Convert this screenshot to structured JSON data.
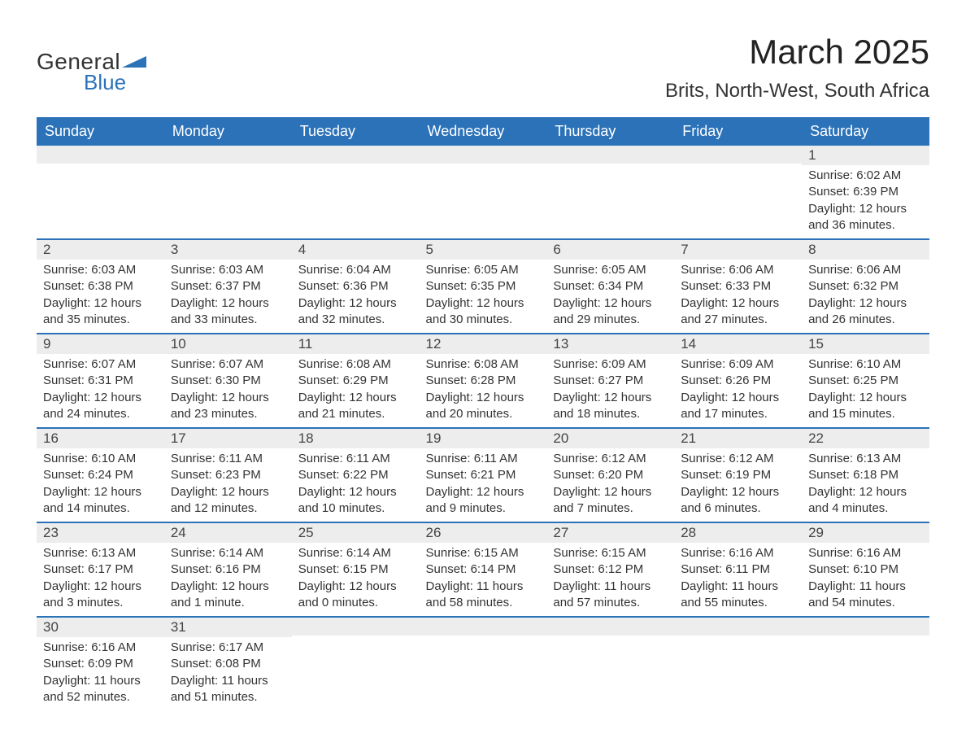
{
  "logo": {
    "general": "General",
    "blue": "Blue",
    "accent_color": "#2b72b9"
  },
  "title": "March 2025",
  "location": "Brits, North-West, South Africa",
  "colors": {
    "header_bg": "#2b72b9",
    "header_text": "#ffffff",
    "daynum_bg": "#ededed",
    "row_divider": "#2b72b9",
    "body_bg": "#ffffff",
    "text": "#333333"
  },
  "typography": {
    "title_fontsize": 42,
    "location_fontsize": 24,
    "header_fontsize": 18,
    "daynum_fontsize": 17,
    "body_fontsize": 15
  },
  "weekdays": [
    "Sunday",
    "Monday",
    "Tuesday",
    "Wednesday",
    "Thursday",
    "Friday",
    "Saturday"
  ],
  "weeks": [
    [
      {
        "blank": true
      },
      {
        "blank": true
      },
      {
        "blank": true
      },
      {
        "blank": true
      },
      {
        "blank": true
      },
      {
        "blank": true
      },
      {
        "day": "1",
        "sunrise": "Sunrise: 6:02 AM",
        "sunset": "Sunset: 6:39 PM",
        "daylight1": "Daylight: 12 hours",
        "daylight2": "and 36 minutes."
      }
    ],
    [
      {
        "day": "2",
        "sunrise": "Sunrise: 6:03 AM",
        "sunset": "Sunset: 6:38 PM",
        "daylight1": "Daylight: 12 hours",
        "daylight2": "and 35 minutes."
      },
      {
        "day": "3",
        "sunrise": "Sunrise: 6:03 AM",
        "sunset": "Sunset: 6:37 PM",
        "daylight1": "Daylight: 12 hours",
        "daylight2": "and 33 minutes."
      },
      {
        "day": "4",
        "sunrise": "Sunrise: 6:04 AM",
        "sunset": "Sunset: 6:36 PM",
        "daylight1": "Daylight: 12 hours",
        "daylight2": "and 32 minutes."
      },
      {
        "day": "5",
        "sunrise": "Sunrise: 6:05 AM",
        "sunset": "Sunset: 6:35 PM",
        "daylight1": "Daylight: 12 hours",
        "daylight2": "and 30 minutes."
      },
      {
        "day": "6",
        "sunrise": "Sunrise: 6:05 AM",
        "sunset": "Sunset: 6:34 PM",
        "daylight1": "Daylight: 12 hours",
        "daylight2": "and 29 minutes."
      },
      {
        "day": "7",
        "sunrise": "Sunrise: 6:06 AM",
        "sunset": "Sunset: 6:33 PM",
        "daylight1": "Daylight: 12 hours",
        "daylight2": "and 27 minutes."
      },
      {
        "day": "8",
        "sunrise": "Sunrise: 6:06 AM",
        "sunset": "Sunset: 6:32 PM",
        "daylight1": "Daylight: 12 hours",
        "daylight2": "and 26 minutes."
      }
    ],
    [
      {
        "day": "9",
        "sunrise": "Sunrise: 6:07 AM",
        "sunset": "Sunset: 6:31 PM",
        "daylight1": "Daylight: 12 hours",
        "daylight2": "and 24 minutes."
      },
      {
        "day": "10",
        "sunrise": "Sunrise: 6:07 AM",
        "sunset": "Sunset: 6:30 PM",
        "daylight1": "Daylight: 12 hours",
        "daylight2": "and 23 minutes."
      },
      {
        "day": "11",
        "sunrise": "Sunrise: 6:08 AM",
        "sunset": "Sunset: 6:29 PM",
        "daylight1": "Daylight: 12 hours",
        "daylight2": "and 21 minutes."
      },
      {
        "day": "12",
        "sunrise": "Sunrise: 6:08 AM",
        "sunset": "Sunset: 6:28 PM",
        "daylight1": "Daylight: 12 hours",
        "daylight2": "and 20 minutes."
      },
      {
        "day": "13",
        "sunrise": "Sunrise: 6:09 AM",
        "sunset": "Sunset: 6:27 PM",
        "daylight1": "Daylight: 12 hours",
        "daylight2": "and 18 minutes."
      },
      {
        "day": "14",
        "sunrise": "Sunrise: 6:09 AM",
        "sunset": "Sunset: 6:26 PM",
        "daylight1": "Daylight: 12 hours",
        "daylight2": "and 17 minutes."
      },
      {
        "day": "15",
        "sunrise": "Sunrise: 6:10 AM",
        "sunset": "Sunset: 6:25 PM",
        "daylight1": "Daylight: 12 hours",
        "daylight2": "and 15 minutes."
      }
    ],
    [
      {
        "day": "16",
        "sunrise": "Sunrise: 6:10 AM",
        "sunset": "Sunset: 6:24 PM",
        "daylight1": "Daylight: 12 hours",
        "daylight2": "and 14 minutes."
      },
      {
        "day": "17",
        "sunrise": "Sunrise: 6:11 AM",
        "sunset": "Sunset: 6:23 PM",
        "daylight1": "Daylight: 12 hours",
        "daylight2": "and 12 minutes."
      },
      {
        "day": "18",
        "sunrise": "Sunrise: 6:11 AM",
        "sunset": "Sunset: 6:22 PM",
        "daylight1": "Daylight: 12 hours",
        "daylight2": "and 10 minutes."
      },
      {
        "day": "19",
        "sunrise": "Sunrise: 6:11 AM",
        "sunset": "Sunset: 6:21 PM",
        "daylight1": "Daylight: 12 hours",
        "daylight2": "and 9 minutes."
      },
      {
        "day": "20",
        "sunrise": "Sunrise: 6:12 AM",
        "sunset": "Sunset: 6:20 PM",
        "daylight1": "Daylight: 12 hours",
        "daylight2": "and 7 minutes."
      },
      {
        "day": "21",
        "sunrise": "Sunrise: 6:12 AM",
        "sunset": "Sunset: 6:19 PM",
        "daylight1": "Daylight: 12 hours",
        "daylight2": "and 6 minutes."
      },
      {
        "day": "22",
        "sunrise": "Sunrise: 6:13 AM",
        "sunset": "Sunset: 6:18 PM",
        "daylight1": "Daylight: 12 hours",
        "daylight2": "and 4 minutes."
      }
    ],
    [
      {
        "day": "23",
        "sunrise": "Sunrise: 6:13 AM",
        "sunset": "Sunset: 6:17 PM",
        "daylight1": "Daylight: 12 hours",
        "daylight2": "and 3 minutes."
      },
      {
        "day": "24",
        "sunrise": "Sunrise: 6:14 AM",
        "sunset": "Sunset: 6:16 PM",
        "daylight1": "Daylight: 12 hours",
        "daylight2": "and 1 minute."
      },
      {
        "day": "25",
        "sunrise": "Sunrise: 6:14 AM",
        "sunset": "Sunset: 6:15 PM",
        "daylight1": "Daylight: 12 hours",
        "daylight2": "and 0 minutes."
      },
      {
        "day": "26",
        "sunrise": "Sunrise: 6:15 AM",
        "sunset": "Sunset: 6:14 PM",
        "daylight1": "Daylight: 11 hours",
        "daylight2": "and 58 minutes."
      },
      {
        "day": "27",
        "sunrise": "Sunrise: 6:15 AM",
        "sunset": "Sunset: 6:12 PM",
        "daylight1": "Daylight: 11 hours",
        "daylight2": "and 57 minutes."
      },
      {
        "day": "28",
        "sunrise": "Sunrise: 6:16 AM",
        "sunset": "Sunset: 6:11 PM",
        "daylight1": "Daylight: 11 hours",
        "daylight2": "and 55 minutes."
      },
      {
        "day": "29",
        "sunrise": "Sunrise: 6:16 AM",
        "sunset": "Sunset: 6:10 PM",
        "daylight1": "Daylight: 11 hours",
        "daylight2": "and 54 minutes."
      }
    ],
    [
      {
        "day": "30",
        "sunrise": "Sunrise: 6:16 AM",
        "sunset": "Sunset: 6:09 PM",
        "daylight1": "Daylight: 11 hours",
        "daylight2": "and 52 minutes."
      },
      {
        "day": "31",
        "sunrise": "Sunrise: 6:17 AM",
        "sunset": "Sunset: 6:08 PM",
        "daylight1": "Daylight: 11 hours",
        "daylight2": "and 51 minutes."
      },
      {
        "blank": true
      },
      {
        "blank": true
      },
      {
        "blank": true
      },
      {
        "blank": true
      },
      {
        "blank": true
      }
    ]
  ]
}
